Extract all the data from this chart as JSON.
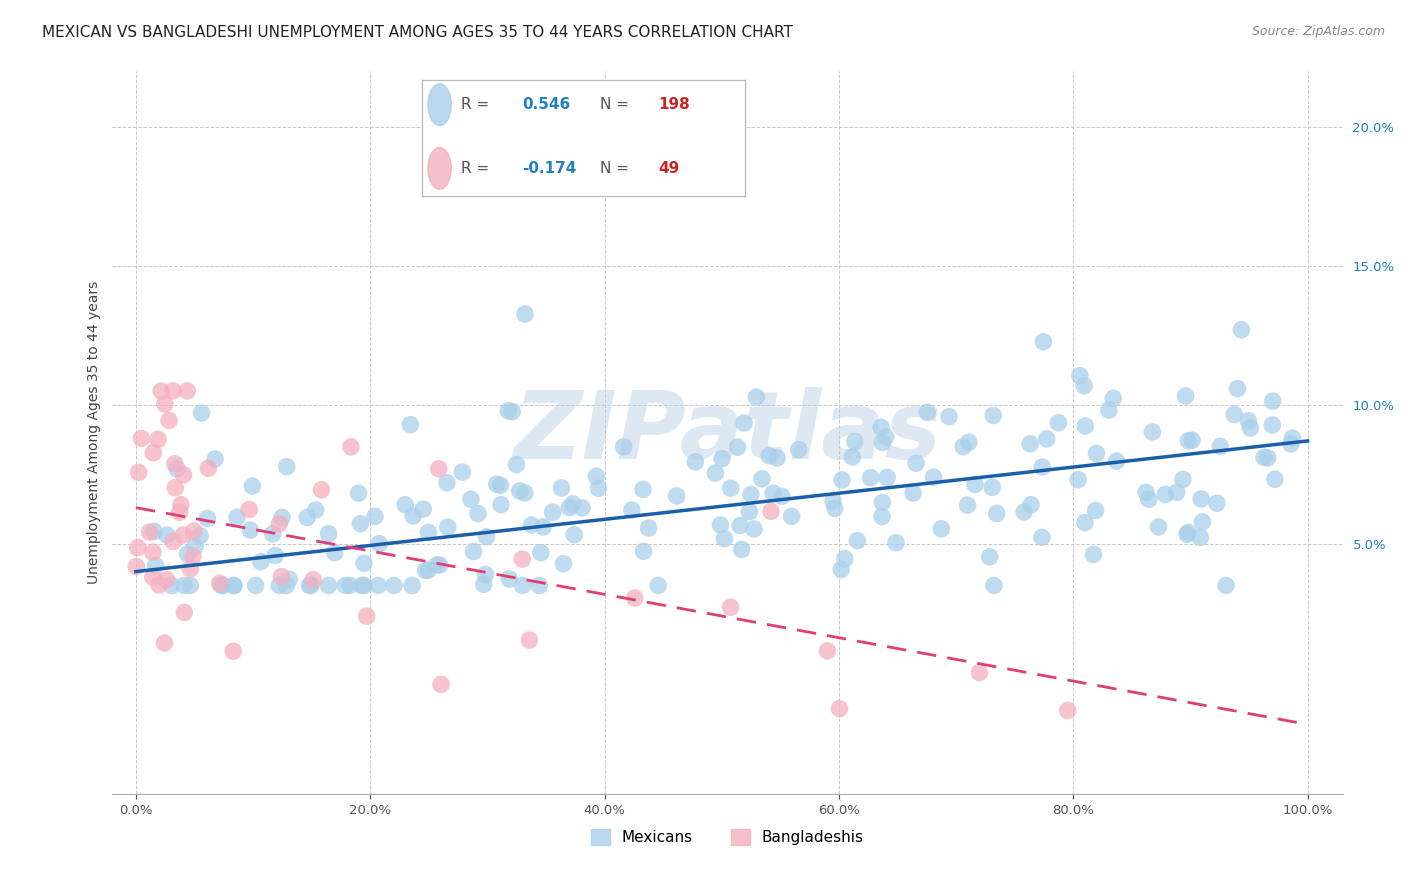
{
  "title": "MEXICAN VS BANGLADESHI UNEMPLOYMENT AMONG AGES 35 TO 44 YEARS CORRELATION CHART",
  "source": "Source: ZipAtlas.com",
  "ylabel": "Unemployment Among Ages 35 to 44 years",
  "xlabel_ticks": [
    "0.0%",
    "20.0%",
    "40.0%",
    "60.0%",
    "80.0%",
    "100.0%"
  ],
  "xlabel_vals": [
    0,
    20,
    40,
    60,
    80,
    100
  ],
  "ytick_labels": [
    "5.0%",
    "10.0%",
    "15.0%",
    "20.0%"
  ],
  "ytick_vals": [
    5,
    10,
    15,
    20
  ],
  "ylim": [
    -4,
    22
  ],
  "xlim": [
    -2,
    103
  ],
  "R_mexican": 0.546,
  "N_mexican": 198,
  "R_bangladeshi": -0.174,
  "N_bangladeshi": 49,
  "mexican_color": "#aacfea",
  "bangladeshi_color": "#f4afc0",
  "mexican_line_color": "#1a5fa8",
  "bangladeshi_line_color": "#e04070",
  "watermark_color": "#dde8f2",
  "background_color": "#ffffff",
  "grid_color": "#c8c8c8",
  "title_fontsize": 11,
  "source_fontsize": 9,
  "axis_label_fontsize": 10,
  "tick_fontsize": 9.5,
  "mexican_line_start_y": 4.0,
  "mexican_line_end_y": 8.7,
  "bangladeshi_line_start_y": 6.3,
  "bangladeshi_line_end_y": -1.5,
  "legend_R_color": "#2080c0",
  "legend_N_color": "#cc2222"
}
